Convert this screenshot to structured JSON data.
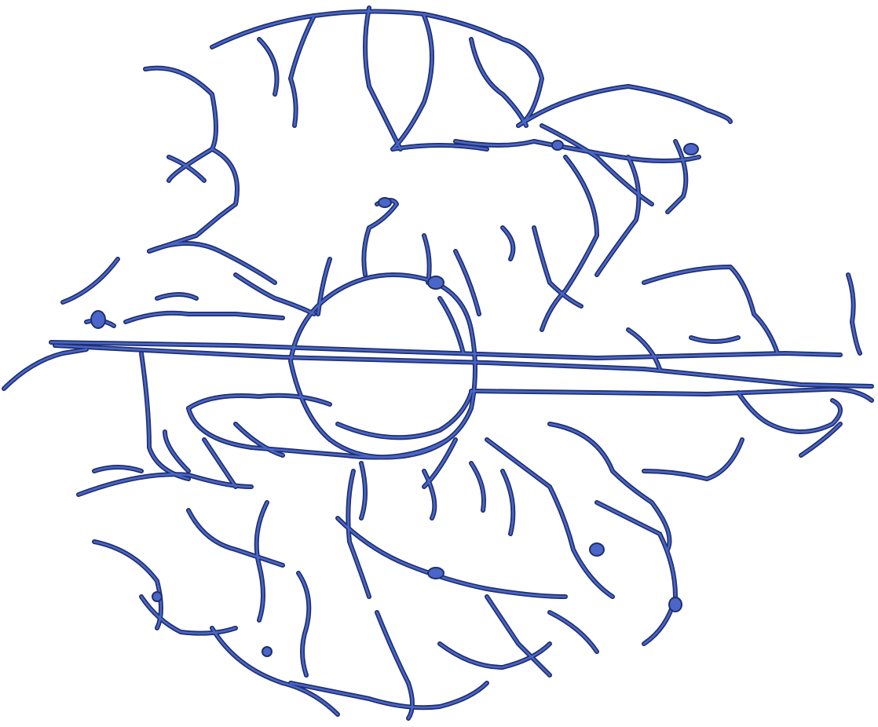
{
  "image": {
    "subject": "brain-vasculature-axial-projection",
    "colors": {
      "background": "#ffffff",
      "vessel_outline": "#1f2f6e",
      "vessel_fill": "#4a66c8"
    }
  }
}
